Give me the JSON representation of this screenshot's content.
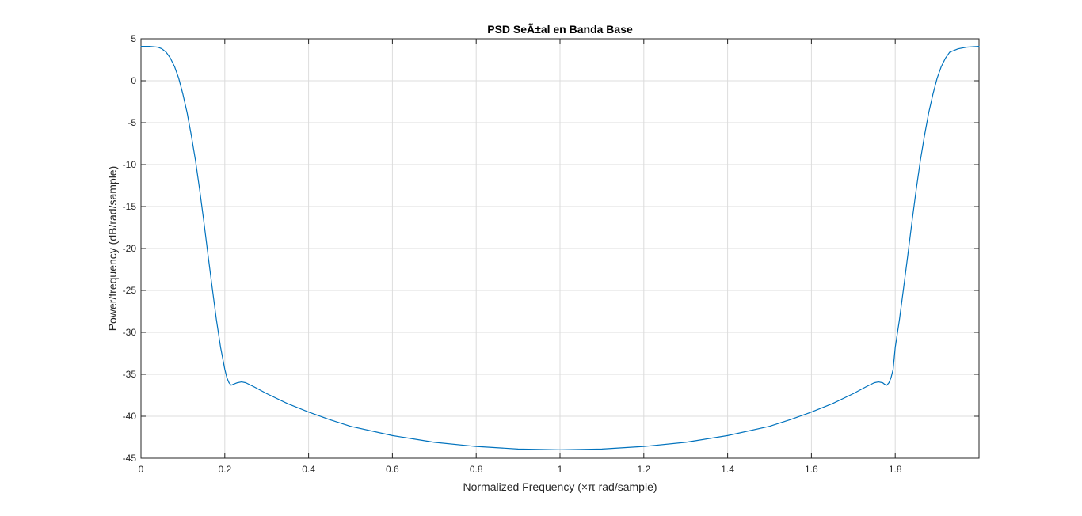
{
  "chart_data": {
    "type": "line",
    "title": "PSD SeÃ±al en Banda Base",
    "xlabel": "Normalized Frequency  (×π rad/sample)",
    "ylabel": "Power/frequency (dB/rad/sample)",
    "xlim": [
      0,
      2
    ],
    "ylim": [
      -45,
      5
    ],
    "x_ticks": [
      0,
      0.2,
      0.4,
      0.6,
      0.8,
      1,
      1.2,
      1.4,
      1.6,
      1.8
    ],
    "x_tick_labels": [
      "0",
      "0.2",
      "0.4",
      "0.6",
      "0.8",
      "1",
      "1.2",
      "1.4",
      "1.6",
      "1.8"
    ],
    "y_ticks": [
      5,
      0,
      -5,
      -10,
      -15,
      -20,
      -25,
      -30,
      -35,
      -40,
      -45
    ],
    "y_tick_labels": [
      "5",
      "0",
      "-5",
      "-10",
      "-15",
      "-20",
      "-25",
      "-30",
      "-35",
      "-40",
      "-45"
    ],
    "grid": true,
    "series": [
      {
        "color": "#0072BD",
        "x": [
          0,
          0.02,
          0.04,
          0.05,
          0.06,
          0.07,
          0.08,
          0.09,
          0.1,
          0.11,
          0.12,
          0.13,
          0.14,
          0.15,
          0.16,
          0.17,
          0.18,
          0.19,
          0.2,
          0.205,
          0.21,
          0.215,
          0.22,
          0.23,
          0.24,
          0.25,
          0.27,
          0.3,
          0.35,
          0.4,
          0.45,
          0.5,
          0.6,
          0.7,
          0.8,
          0.9,
          1.0,
          1.1,
          1.2,
          1.3,
          1.4,
          1.5,
          1.55,
          1.6,
          1.65,
          1.7,
          1.73,
          1.75,
          1.76,
          1.77,
          1.775,
          1.78,
          1.785,
          1.79,
          1.795,
          1.8,
          1.81,
          1.82,
          1.83,
          1.84,
          1.85,
          1.86,
          1.87,
          1.88,
          1.89,
          1.9,
          1.91,
          1.92,
          1.93,
          1.95,
          1.97,
          2.0
        ],
        "y": [
          4.1,
          4.1,
          4.0,
          3.8,
          3.4,
          2.7,
          1.7,
          0.3,
          -1.6,
          -3.8,
          -6.5,
          -9.5,
          -13.0,
          -16.8,
          -20.8,
          -24.7,
          -28.5,
          -31.8,
          -34.4,
          -35.4,
          -36.0,
          -36.3,
          -36.2,
          -36.0,
          -35.9,
          -36.0,
          -36.5,
          -37.3,
          -38.5,
          -39.5,
          -40.4,
          -41.2,
          -42.3,
          -43.1,
          -43.6,
          -43.9,
          -44.0,
          -43.9,
          -43.6,
          -43.1,
          -42.3,
          -41.2,
          -40.4,
          -39.5,
          -38.5,
          -37.3,
          -36.5,
          -36.0,
          -35.9,
          -36.0,
          -36.2,
          -36.3,
          -36.0,
          -35.4,
          -34.4,
          -31.8,
          -28.5,
          -24.7,
          -20.8,
          -16.8,
          -13.0,
          -9.5,
          -6.5,
          -3.8,
          -1.6,
          0.3,
          1.7,
          2.7,
          3.4,
          3.8,
          4.0,
          4.1
        ]
      }
    ]
  }
}
